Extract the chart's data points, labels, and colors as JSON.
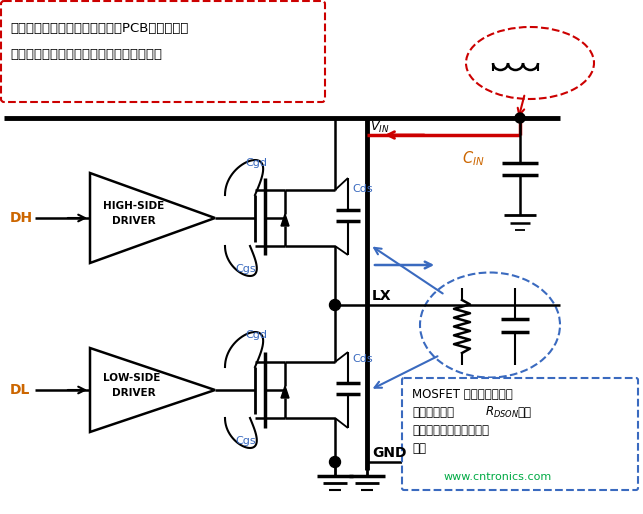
{
  "bg_color": "#ffffff",
  "line_color": "#000000",
  "red_color": "#cc0000",
  "blue_color": "#3a6abf",
  "orange_color": "#cc6600",
  "green_color": "#00aa44",
  "fig_width": 6.43,
  "fig_height": 5.14,
  "dpi": 100,
  "top_text_line1": "退耦电容到芯片电源引脚之间的PCB走线，以及",
  "top_text_line2": "电源引脚到内部硅片的邦定线相当于电感。",
  "website": "www.cntronics.com",
  "mosfet_box_line1": "MOSFET 在导通时，等效",
  "mosfet_box_line2": "成于小阻值（",
  "mosfet_box_rdson": "$R_{DSON}$",
  "mosfet_box_line2b": "）电",
  "mosfet_box_line3": "阻，在截止时，等效成电",
  "mosfet_box_line4": "容。"
}
